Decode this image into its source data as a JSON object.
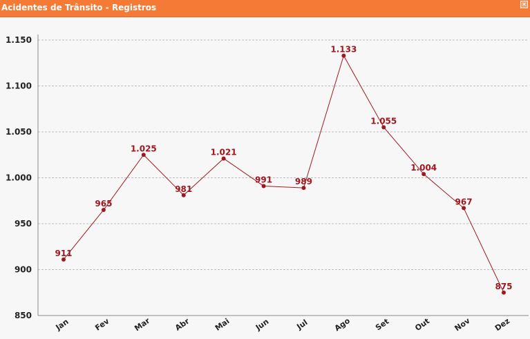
{
  "window": {
    "title": "Acidentes de Trânsito - Registros",
    "close_icon": "close-icon"
  },
  "colors": {
    "titlebar": "#f47a35",
    "series": "#a0181f",
    "grid": "#bdbdbd",
    "axis_text": "#222222"
  },
  "chart_data": {
    "type": "line",
    "title": "Acidentes de Trânsito - Registros",
    "categories": [
      "Jan",
      "Fev",
      "Mar",
      "Abr",
      "Mai",
      "Jun",
      "Jul",
      "Ago",
      "Set",
      "Out",
      "Nov",
      "Dez"
    ],
    "series": [
      {
        "values": [
          911,
          965,
          1025,
          981,
          1021,
          991,
          989,
          1133,
          1055,
          1004,
          967,
          875
        ],
        "labels": [
          "911",
          "965",
          "1.025",
          "981",
          "1.021",
          "991",
          "989",
          "1.133",
          "1.055",
          "1.004",
          "967",
          "875"
        ]
      }
    ],
    "yticks": [
      850,
      900,
      950,
      1000,
      1050,
      1100,
      1150
    ],
    "ytick_labels": [
      "850",
      "900",
      "950",
      "1.000",
      "1.050",
      "1.100",
      "1.150"
    ],
    "ylim": [
      850,
      1150
    ],
    "xlabel": "",
    "ylabel": "",
    "grid": true,
    "legend": "none"
  }
}
